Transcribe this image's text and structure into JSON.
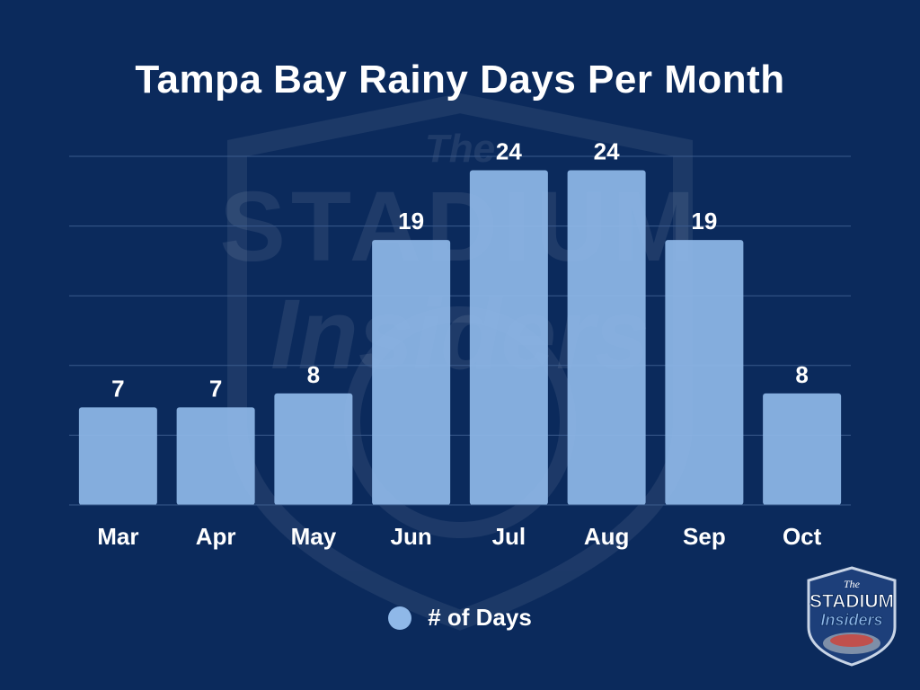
{
  "colors": {
    "background": "#0b2a5c",
    "bar": "#8fb8e8",
    "grid": "#3a5a8c",
    "text": "#ffffff"
  },
  "watermark": {
    "line1": "The",
    "line2": "STADIUM",
    "line3": "Insiders"
  },
  "logo": {
    "line1": "The",
    "line2": "STADIUM",
    "line3": "Insiders"
  },
  "chart_data": {
    "type": "bar",
    "title": "Tampa Bay Rainy Days Per Month",
    "categories": [
      "Mar",
      "Apr",
      "May",
      "Jun",
      "Jul",
      "Aug",
      "Sep",
      "Oct"
    ],
    "series": [
      {
        "name": "# of Days",
        "values": [
          7,
          7,
          8,
          19,
          24,
          24,
          19,
          8
        ]
      }
    ],
    "ylim": [
      0,
      25
    ],
    "grid": true,
    "data_labels": true,
    "legend": "bottom"
  }
}
